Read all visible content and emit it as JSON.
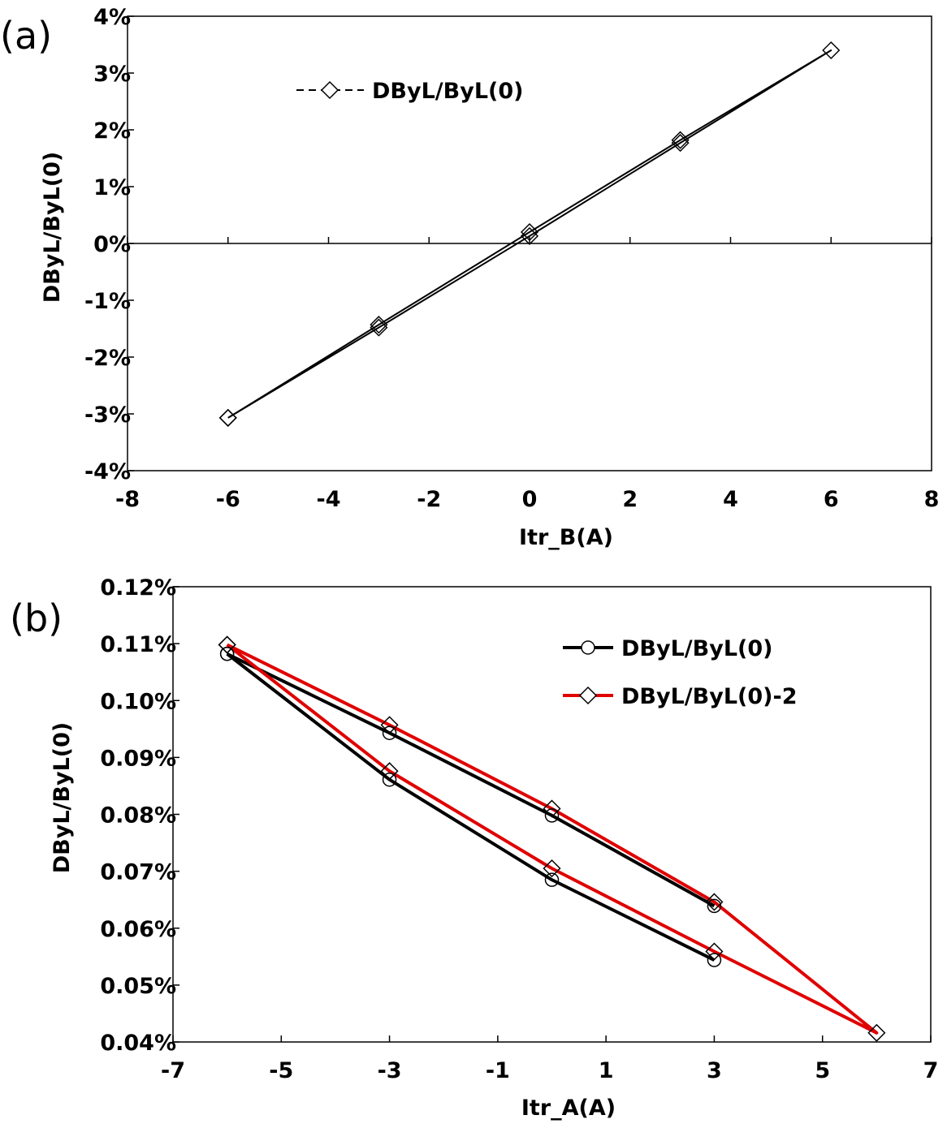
{
  "chart_data": [
    {
      "type": "line",
      "panel_label": "(a)",
      "xlabel": "Itr_B(A)",
      "ylabel": "DByL/ByL(0)",
      "xlim": [
        -8,
        8
      ],
      "ylim": [
        -4,
        4
      ],
      "x_ticks": [
        -8,
        -6,
        -4,
        -2,
        0,
        2,
        4,
        6,
        8
      ],
      "x_tick_labels": [
        "-8",
        "-6",
        "-4",
        "-2",
        "0",
        "2",
        "4",
        "6",
        "8"
      ],
      "y_ticks": [
        -4,
        -3,
        -2,
        -1,
        0,
        1,
        2,
        3,
        4
      ],
      "y_tick_labels": [
        "-4%",
        "-3%",
        "-2%",
        "-1%",
        "0%",
        "1%",
        "2%",
        "3%",
        "4%"
      ],
      "zero_line": true,
      "legend_position": "top-left",
      "series": [
        {
          "name": "DByL/ByL(0)",
          "color": "#000000",
          "marker": "diamond",
          "line_style": "dashed",
          "x": [
            -6,
            -3,
            0,
            3,
            6,
            3,
            0,
            -3,
            -6
          ],
          "values": [
            -3.07,
            -1.48,
            0.13,
            1.77,
            3.4,
            1.82,
            0.2,
            -1.43,
            -3.07
          ]
        }
      ]
    },
    {
      "type": "line",
      "panel_label": "(b)",
      "xlabel": "Itr_A(A)",
      "ylabel": "DByL/ByL(0)",
      "xlim": [
        -7,
        7
      ],
      "ylim": [
        0.04,
        0.12
      ],
      "x_ticks": [
        -7,
        -5,
        -3,
        -1,
        1,
        3,
        5,
        7
      ],
      "x_tick_labels": [
        "-7",
        "-5",
        "-3",
        "-1",
        "1",
        "3",
        "5",
        "7"
      ],
      "y_ticks": [
        0.04,
        0.05,
        0.06,
        0.07,
        0.08,
        0.09,
        0.1,
        0.11,
        0.12
      ],
      "y_tick_labels": [
        "0.04%",
        "0.05%",
        "0.06%",
        "0.07%",
        "0.08%",
        "0.09%",
        "0.10%",
        "0.11%",
        "0.12%"
      ],
      "legend_position": "top-right",
      "series": [
        {
          "name": "DByL/ByL(0)",
          "color": "#000000",
          "marker": "circle",
          "line_style": "solid",
          "x": [
            -6,
            -3,
            0,
            3
          ],
          "values": [
            0.1082,
            0.0943,
            0.0798,
            0.0639
          ],
          "x2": [
            -6,
            -3,
            0,
            3
          ],
          "values2": [
            0.1082,
            0.0861,
            0.0685,
            0.0544
          ]
        },
        {
          "name": "DByL/ByL(0)-2",
          "color": "#e00000",
          "marker": "diamond",
          "line_style": "solid",
          "x": [
            -6,
            -3,
            0,
            3,
            6,
            3,
            0,
            -3,
            -6
          ],
          "values": [
            0.1098,
            0.0957,
            0.081,
            0.0646,
            0.0416,
            0.0559,
            0.0705,
            0.0876,
            0.1098
          ]
        }
      ]
    }
  ]
}
